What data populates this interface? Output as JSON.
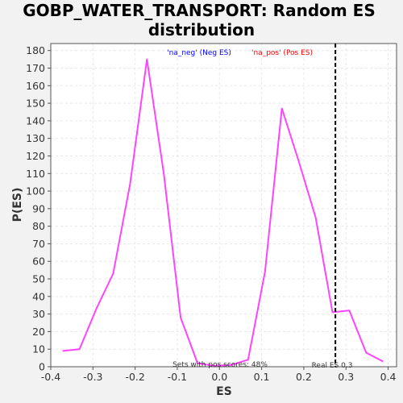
{
  "chart_data": {
    "type": "line",
    "title_lines": [
      "GOBP_WATER_TRANSPORT: Random ES",
      "distribution"
    ],
    "xlabel": "ES",
    "ylabel": "P(ES)",
    "xlim": [
      -0.4,
      0.42
    ],
    "ylim": [
      0,
      184
    ],
    "x_ticks": [
      -0.4,
      -0.3,
      -0.2,
      -0.1,
      0.0,
      0.1,
      0.2,
      0.3,
      0.4
    ],
    "x_tick_labels": [
      "-0.4",
      "-0.3",
      "-0.2",
      "-0.1",
      "0.0",
      "0.1",
      "0.2",
      "0.3",
      "0.4"
    ],
    "y_ticks": [
      0,
      10,
      20,
      30,
      40,
      50,
      60,
      70,
      80,
      90,
      100,
      110,
      120,
      130,
      140,
      150,
      160,
      170,
      180
    ],
    "y_tick_labels": [
      "0",
      "10",
      "20",
      "30",
      "40",
      "50",
      "60",
      "70",
      "80",
      "90",
      "100",
      "110",
      "120",
      "130",
      "140",
      "150",
      "160",
      "170",
      "180"
    ],
    "grid": true,
    "series": [
      {
        "color": "#ff44ff",
        "x": [
          -0.372,
          -0.332,
          -0.292,
          -0.252,
          -0.212,
          -0.172,
          -0.132,
          -0.092,
          -0.052,
          -0.012,
          0.028,
          0.068,
          0.108,
          0.148,
          0.188,
          0.228,
          0.268,
          0.308,
          0.348,
          0.388
        ],
        "y": [
          9,
          10,
          33,
          53,
          104,
          175,
          110,
          28,
          2,
          0.5,
          1,
          4,
          54,
          147,
          117,
          85,
          31,
          32,
          8,
          3
        ]
      }
    ],
    "real_es": {
      "x": 0.275,
      "label": "Real ES 0.3",
      "color": "#000000"
    },
    "annotations": {
      "pos_score_text": "Sets with pos scores: 48%",
      "legend_neg": "'na_neg' (Neg ES)",
      "legend_pos": "'na_pos' (Pos ES)",
      "legend_neg_color": "#0000ff",
      "legend_pos_color": "#ff0000"
    }
  },
  "colors": {
    "background": "#f2f2f2",
    "plot_background": "#ffffff",
    "grid": "#e8e8e8",
    "axis": "#555555"
  }
}
